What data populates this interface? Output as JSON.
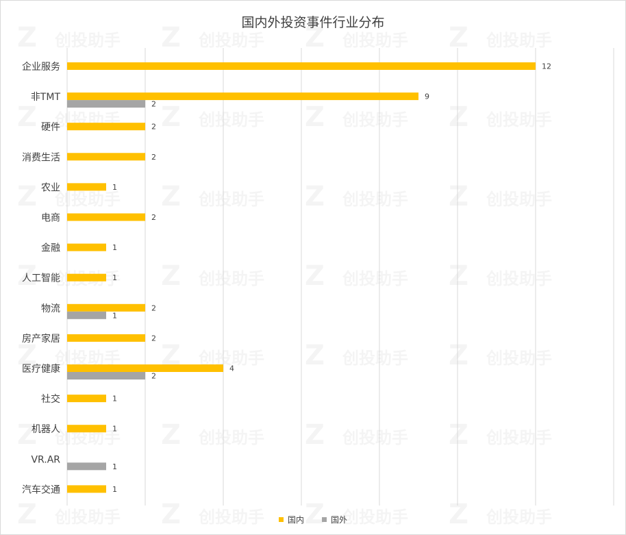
{
  "chart_data": {
    "type": "bar",
    "orientation": "horizontal",
    "title": "国内外投资事件行业分布",
    "categories": [
      "企业服务",
      "非TMT",
      "硬件",
      "消费生活",
      "农业",
      "电商",
      "金融",
      "人工智能",
      "物流",
      "房产家居",
      "医疗健康",
      "社交",
      "机器人",
      "VR.AR",
      "汽车交通"
    ],
    "series": [
      {
        "name": "国内",
        "color": "#FFC000",
        "values": [
          12,
          9,
          2,
          2,
          1,
          2,
          1,
          1,
          2,
          2,
          4,
          1,
          1,
          null,
          1
        ]
      },
      {
        "name": "国外",
        "color": "#A5A5A5",
        "values": [
          null,
          2,
          null,
          null,
          null,
          null,
          null,
          null,
          1,
          null,
          2,
          null,
          null,
          1,
          null
        ]
      }
    ],
    "xlim": [
      0,
      14
    ],
    "grid": true,
    "legend_position": "bottom"
  },
  "watermark": "创投助手"
}
